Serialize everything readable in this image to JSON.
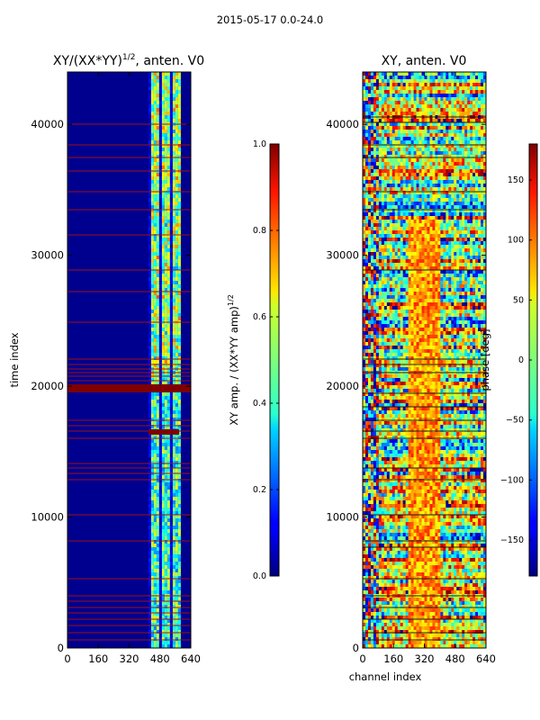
{
  "chart_data": {
    "suptitle": "2015-05-17 0.0-24.0",
    "panels": [
      {
        "type": "heatmap",
        "title": "XY/(XX*YY)",
        "title_sup": "1/2",
        "title_tail": ", anten. V0",
        "xlabel": "",
        "ylabel": "time index",
        "xlim": [
          0,
          640
        ],
        "ylim": [
          0,
          44000
        ],
        "xticks": [
          0,
          160,
          320,
          480,
          640
        ],
        "yticks": [
          0,
          10000,
          20000,
          30000,
          40000
        ],
        "colormap": "jet",
        "colorbar": {
          "label": "XY amp. / (XX*YY amp)",
          "label_sup": "1/2",
          "range": [
            0.0,
            1.0
          ],
          "ticks": [
            "0.0",
            "0.2",
            "0.4",
            "0.6",
            "0.8",
            "1.0"
          ]
        }
      },
      {
        "type": "heatmap",
        "title": "XY, anten. V0",
        "xlabel": "channel index",
        "ylabel": "",
        "xlim": [
          0,
          640
        ],
        "ylim": [
          0,
          44000
        ],
        "xticks": [
          0,
          160,
          320,
          480,
          640
        ],
        "yticks": [
          0,
          10000,
          20000,
          30000,
          40000
        ],
        "colormap": "jet",
        "colorbar": {
          "label": "phase [deg]",
          "range": [
            -180,
            180
          ],
          "ticks": [
            "150",
            "100",
            "50",
            "0",
            "−50",
            "−100",
            "−150"
          ],
          "tick_values": [
            150,
            100,
            50,
            0,
            -50,
            -100,
            -150
          ]
        }
      }
    ]
  }
}
